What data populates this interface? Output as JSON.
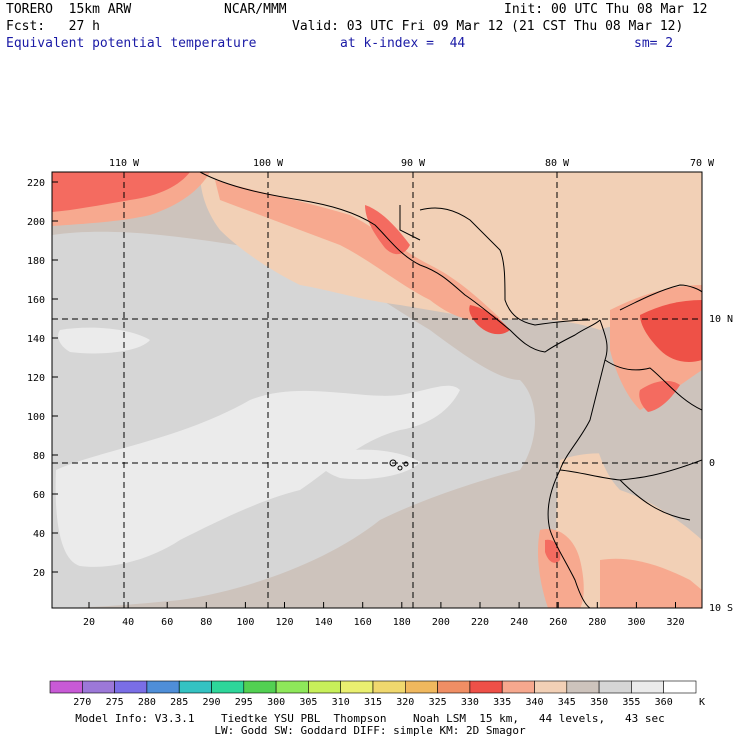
{
  "header": {
    "model": "TORERO  15km ARW",
    "center": "NCAR/MMM",
    "init": "Init: 00 UTC Thu 08 Mar 12",
    "fcst": "Fcst:   27 h",
    "valid": "Valid: 03 UTC Fri 09 Mar 12 (21 CST Thu 08 Mar 12)",
    "field": "Equivalent potential temperature",
    "level": "at k-index =  44",
    "smooth": "sm= 2"
  },
  "map": {
    "top_lon_labels": [
      "110 W",
      "100 W",
      "90 W",
      "80 W",
      "70 W"
    ],
    "right_lat_labels": [
      "10 N",
      "0",
      "10 S"
    ],
    "left_grid_labels": [
      "220",
      "200",
      "180",
      "160",
      "140",
      "120",
      "100",
      "80",
      "60",
      "40",
      "20"
    ],
    "bottom_grid_labels": [
      "20",
      "40",
      "60",
      "80",
      "100",
      "120",
      "140",
      "160",
      "180",
      "200",
      "220",
      "240",
      "260",
      "280",
      "300",
      "320"
    ],
    "gridline_style": "dashed",
    "colors": {
      "c360": "#ebebeb",
      "c355": "#d6d6d6",
      "c345": "#cdc3bc",
      "c340": "#f2d0b6",
      "c335": "#f7a98f",
      "c330": "#f46b60",
      "c325": "#ee5147"
    }
  },
  "colorbar": {
    "unit": "K",
    "labels": [
      "270",
      "275",
      "280",
      "285",
      "290",
      "295",
      "300",
      "305",
      "310",
      "315",
      "320",
      "325",
      "330",
      "335",
      "340",
      "345",
      "350",
      "355",
      "360"
    ],
    "colors": [
      "#c85ad6",
      "#9c78d8",
      "#7a6ee6",
      "#4f8ed8",
      "#34c2c2",
      "#2ed69a",
      "#52d052",
      "#8ee85a",
      "#c8f05a",
      "#eaf070",
      "#f0d86e",
      "#f0b85e",
      "#f08e64",
      "#ee5048",
      "#f6a88e",
      "#f2d0b6",
      "#cdc3bc",
      "#d6d6d6",
      "#ebebeb",
      "#ffffff"
    ]
  },
  "footer": {
    "line1": "Model Info: V3.3.1    Tiedtke YSU PBL  Thompson    Noah LSM  15 km,   44 levels,   43 sec",
    "line2": "LW: Godd SW: Goddard DIFF: simple KM: 2D Smagor"
  }
}
